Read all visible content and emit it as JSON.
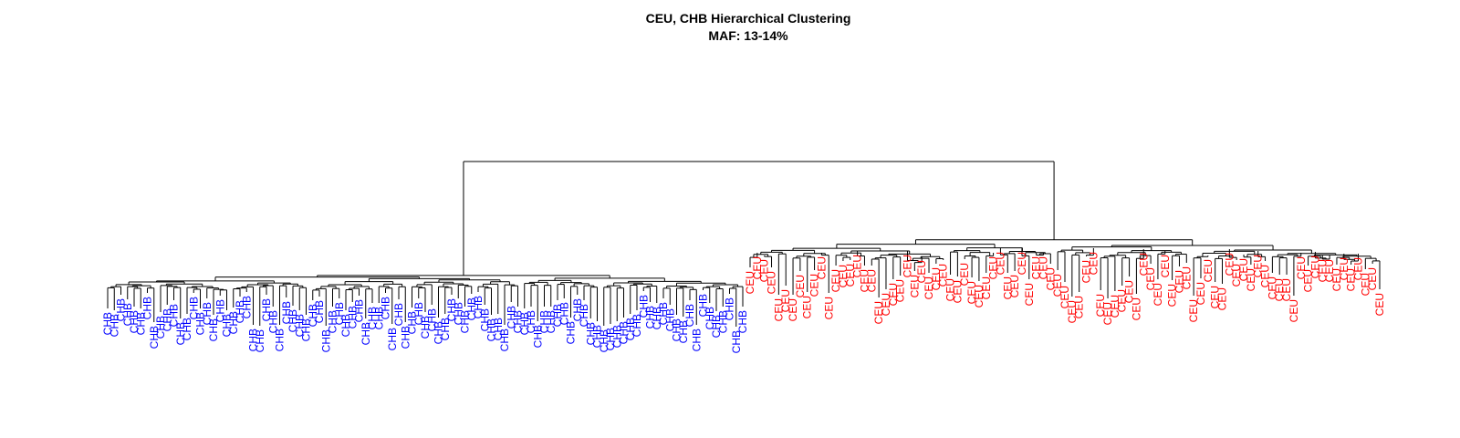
{
  "title": "CEU, CHB Hierarchical Clustering",
  "subtitle": "MAF: 13-14%",
  "groups": [
    {
      "label": "CHB",
      "color": "#0000ff",
      "count": 97
    },
    {
      "label": "CEU",
      "color": "#ff0000",
      "count": 89
    }
  ]
}
